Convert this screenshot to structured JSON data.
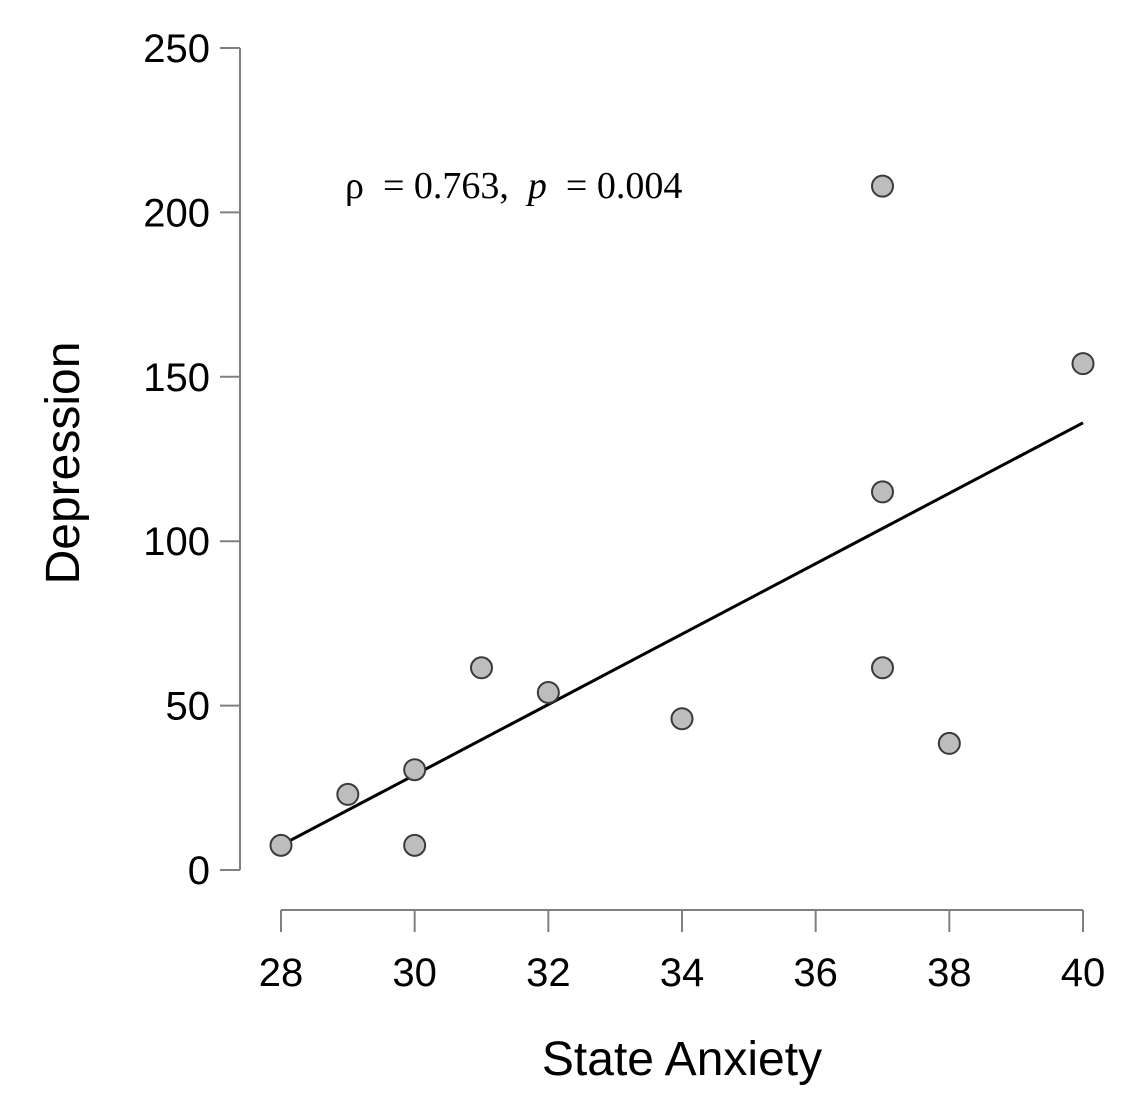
{
  "chart_data": {
    "type": "scatter",
    "title": "",
    "xlabel": "State Anxiety",
    "ylabel": "Depression",
    "xlim": [
      28,
      40
    ],
    "ylim": [
      0,
      250
    ],
    "xticks": [
      28,
      30,
      32,
      34,
      36,
      38,
      40
    ],
    "yticks": [
      0,
      50,
      100,
      150,
      200,
      250
    ],
    "xtick_labels": [
      "28",
      "30",
      "32",
      "34",
      "36",
      "38",
      "40"
    ],
    "ytick_labels": [
      "0",
      "50",
      "100",
      "150",
      "200",
      "250"
    ],
    "grid": false,
    "points": [
      {
        "x": 28,
        "y": 7.5
      },
      {
        "x": 29,
        "y": 23
      },
      {
        "x": 30,
        "y": 7.5
      },
      {
        "x": 30,
        "y": 30.5
      },
      {
        "x": 31,
        "y": 61.5
      },
      {
        "x": 32,
        "y": 54
      },
      {
        "x": 34,
        "y": 46
      },
      {
        "x": 37,
        "y": 61.5
      },
      {
        "x": 37,
        "y": 115
      },
      {
        "x": 37,
        "y": 208
      },
      {
        "x": 38,
        "y": 38.5
      },
      {
        "x": 40,
        "y": 154
      }
    ],
    "fit_line": {
      "x": [
        28,
        40
      ],
      "y": [
        7.5,
        136
      ]
    },
    "annotation": {
      "rho_symbol": "ρ",
      "rho_text": " = 0.763, ",
      "p_symbol": "p",
      "p_text": " = 0.004"
    },
    "colors": {
      "point_fill": "#bdbdbd",
      "point_stroke": "#3a3a3a",
      "axis": "#808080",
      "fit_line": "#000000"
    }
  }
}
